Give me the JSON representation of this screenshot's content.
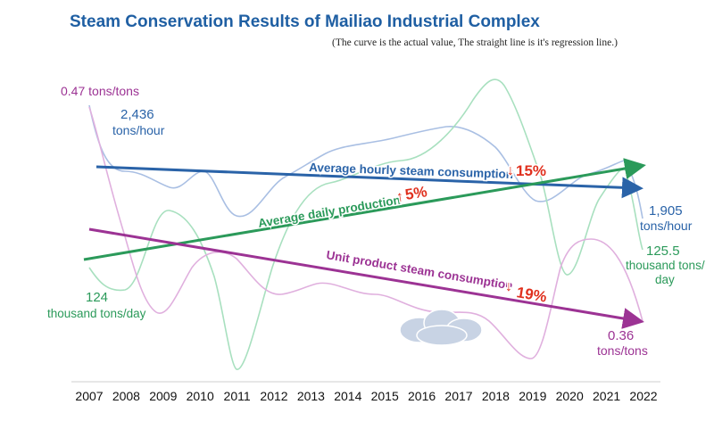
{
  "title": "Steam Conservation Results of Mailiao Industrial Complex",
  "subtitle": "(The curve is the actual value, The straight line is it's regression line.)",
  "colors": {
    "hourly": "#2a63a8",
    "daily": "#2b9a5a",
    "unit": "#9c3394",
    "decrease": "#e0301e",
    "increase": "#e0301e"
  },
  "chart_data": {
    "type": "line",
    "categories": [
      "2007",
      "2008",
      "2009",
      "2010",
      "2011",
      "2012",
      "2013",
      "2014",
      "2015",
      "2016",
      "2017",
      "2018",
      "2019",
      "2020",
      "2021",
      "2022"
    ],
    "series": [
      {
        "name": "Average hourly steam consumption",
        "style": "curve",
        "color": "#a9bfe3",
        "approx_values_tons_per_hour": [
          2436,
          2330,
          2300,
          2330,
          2200,
          2330,
          2330,
          2240,
          2300,
          2350,
          2390,
          2340,
          2330,
          2300,
          2300,
          1905
        ]
      },
      {
        "name": "Average daily production",
        "style": "curve",
        "color": "#a8e0bf",
        "approx_values_thousand_tons_per_day": [
          124,
          123,
          127,
          126,
          121,
          124,
          128,
          128,
          129,
          131,
          133,
          135,
          129,
          123,
          128,
          125.5
        ]
      },
      {
        "name": "Unit product steam consumption",
        "style": "curve",
        "color": "#e0b0de",
        "approx_values_tons_per_ton": [
          0.47,
          0.41,
          0.38,
          0.38,
          0.39,
          0.38,
          0.38,
          0.39,
          0.39,
          0.38,
          0.38,
          0.38,
          0.36,
          0.39,
          0.38,
          0.36
        ]
      }
    ],
    "regression_lines": [
      {
        "series": "Average hourly steam consumption",
        "label": "Average hourly steam consumption",
        "change_arrow": "↓",
        "change": "15%",
        "direction": "down"
      },
      {
        "series": "Average daily production",
        "label": "Average daily production",
        "change_arrow": "↑",
        "change": "5%",
        "direction": "up"
      },
      {
        "series": "Unit product steam consumption",
        "label": "Unit product steam consumption",
        "change_arrow": "↓",
        "change": "19%",
        "direction": "down"
      }
    ],
    "annotations": {
      "unit_start": "0.47 tons/tons",
      "hourly_start_value": "2,436",
      "hourly_start_unit": "tons/hour",
      "hourly_end_value": "1,905",
      "hourly_end_unit": "tons/hour",
      "daily_end_value": "125.5",
      "daily_end_unit_line1": "thousand tons/",
      "daily_end_unit_line2": "day",
      "daily_start_value": "124",
      "daily_start_unit": "thousand tons/day",
      "unit_end_value": "0.36",
      "unit_end_unit": "tons/tons"
    },
    "decorations": {
      "cloud": "cloud-icon"
    },
    "grid": false,
    "legend": "none"
  }
}
